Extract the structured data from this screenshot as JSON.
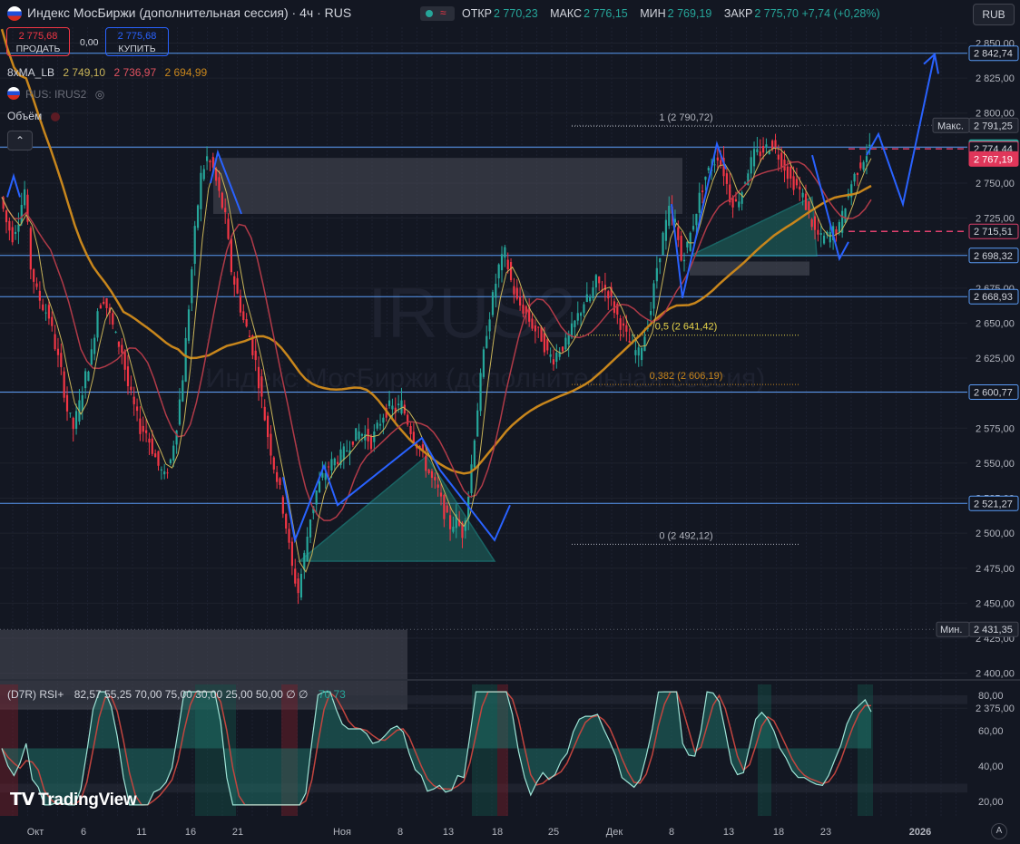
{
  "header": {
    "symbol_title": "Индекс МосБиржи (дополнительная сессия) · 4ч · RUS",
    "ohlc": [
      {
        "key": "ОТКР",
        "value": "2 770,23"
      },
      {
        "key": "МАКС",
        "value": "2 776,15"
      },
      {
        "key": "МИН",
        "value": "2 769,19"
      },
      {
        "key": "ЗАКР",
        "value": "2 775,70 +7,74 (+0,28%)"
      }
    ],
    "currency": "RUB"
  },
  "trade": {
    "sell_price": "2 775,68",
    "sell_label": "ПРОДАТЬ",
    "spread": "0,00",
    "buy_price": "2 775,68",
    "buy_label": "КУПИТЬ"
  },
  "indicators": {
    "ma_name": "8xMA_LB",
    "ma_values": [
      "2 749,10",
      "2 736,97",
      "2 694,99"
    ],
    "compare_symbol": "RUS: IRUS2",
    "volume_label": "Объём",
    "rsi_name": "(D7R) RSI+",
    "rsi_params": "82,57  55,25  70,00  75,00  30,00  25,00  50,00  ∅  ∅",
    "rsi_value": "70,73"
  },
  "watermark": {
    "symbol": "IRUS2",
    "name": "Индекс МосБиржи (дополнительная сессия)"
  },
  "logo": "TradingView",
  "colors": {
    "background": "#131722",
    "up": "#26a69a",
    "down": "#f23645",
    "ma_orange": "#c8861c",
    "ma_red": "#b03a48",
    "ma_yellow": "#c9b458",
    "level_line": "#5b9cf6",
    "marker_blue": "#2962ff",
    "fib_yellow": "#e8d54a"
  },
  "chart_data": {
    "type": "line",
    "title": "",
    "xlabel": "",
    "ylabel": "",
    "ylim": [
      2370,
      2860
    ],
    "x_ticks": [
      "Окт",
      "6",
      "11",
      "16",
      "21",
      "Ноя",
      "8",
      "13",
      "18",
      "25",
      "Дек",
      "8",
      "13",
      "18",
      "23",
      "2026"
    ],
    "y_ticks": [
      "2 850,00",
      "2 825,00",
      "2 800,00",
      "2 775,00",
      "2 750,00",
      "2 725,00",
      "2 700,00",
      "2 675,00",
      "2 650,00",
      "2 625,00",
      "2 600,00",
      "2 575,00",
      "2 550,00",
      "2 525,00",
      "2 500,00",
      "2 475,00",
      "2 450,00",
      "2 425,00",
      "2 400,00",
      "2 375,00"
    ],
    "series": [
      {
        "name": "",
        "values": [
          2740,
          2722,
          2712,
          2725,
          2745,
          2690,
          2672,
          2662,
          2655,
          2634,
          2615,
          2588,
          2575,
          2592,
          2612,
          2628,
          2660,
          2668,
          2655,
          2640,
          2630,
          2605,
          2590,
          2575,
          2572,
          2560,
          2548,
          2540,
          2552,
          2578,
          2612,
          2662,
          2715,
          2755,
          2768,
          2760,
          2742,
          2725,
          2688,
          2670,
          2652,
          2640,
          2622,
          2595,
          2570,
          2548,
          2530,
          2505,
          2475,
          2458,
          2484,
          2512,
          2530,
          2540,
          2548,
          2552,
          2555,
          2560,
          2568,
          2572,
          2570,
          2565,
          2575,
          2585,
          2590,
          2588,
          2592,
          2580,
          2568,
          2560,
          2548,
          2538,
          2530,
          2515,
          2505,
          2510,
          2500,
          2528,
          2570,
          2610,
          2645,
          2668,
          2690,
          2700,
          2680,
          2665,
          2660,
          2652,
          2645,
          2640,
          2628,
          2625,
          2632,
          2635,
          2645,
          2655,
          2665,
          2668,
          2680,
          2675,
          2672,
          2660,
          2650,
          2640,
          2632,
          2628,
          2642,
          2660,
          2690,
          2712,
          2730,
          2722,
          2695,
          2705,
          2722,
          2740,
          2755,
          2762,
          2770,
          2758,
          2740,
          2735,
          2745,
          2760,
          2770,
          2772,
          2775,
          2778,
          2770,
          2762,
          2752,
          2748,
          2740,
          2728,
          2715,
          2710,
          2712,
          2716,
          2718,
          2735,
          2750,
          2760,
          2768,
          2775
        ]
      }
    ],
    "price_levels": [
      2842.74,
      2775.7,
      2774.44,
      2767.19,
      2715.51,
      2698.32,
      2668.93,
      2600.77,
      2521.27
    ],
    "price_labels": [
      "2 842,74",
      "2 775,70",
      "2 774,44",
      "2 767,19",
      "2 715,51",
      "2 698,32",
      "2 668,93",
      "2 600,77",
      "2 521,27"
    ],
    "max_label": "Макс.",
    "max_value": "2 791,25",
    "min_label": "Мин.",
    "min_value": "2 431,35",
    "fib_levels": [
      {
        "label": "1 (2 790,72)",
        "value": 2790.72
      },
      {
        "label": "0,5 (2 641,42)",
        "value": 2641.42
      },
      {
        "label": "0,382 (2 606,19)",
        "value": 2606.19
      },
      {
        "label": "0 (2 492,12)",
        "value": 2492.12
      }
    ],
    "rsi": {
      "ylim": [
        10,
        90
      ],
      "y_ticks": [
        "80,00",
        "60,00",
        "40,00",
        "20,00"
      ],
      "last": 70.73
    },
    "grid": true,
    "legend": "top-left"
  }
}
